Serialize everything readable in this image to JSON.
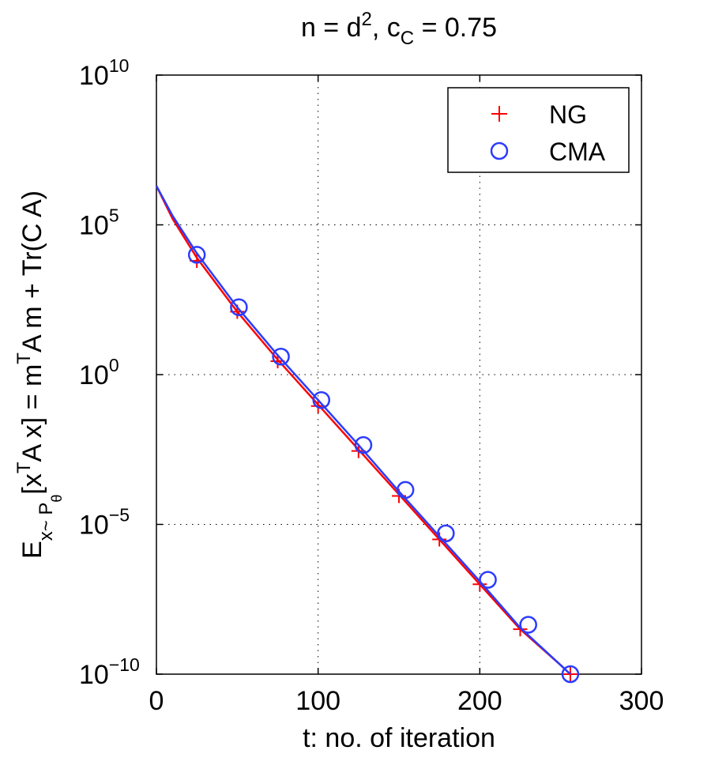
{
  "chart_data": {
    "type": "line",
    "title": {
      "base": "n = d",
      "sup": "2",
      "mid": ", c",
      "sub": "C",
      "tail": " = 0.75"
    },
    "xlabel": "t: no. of iteration",
    "ylabel": {
      "p1": "E",
      "p1_sub": "x~ P",
      "p1_subsub": "θ",
      "p2": "[x",
      "p2_sup": "T",
      "p3": "A x] = m",
      "p3_sup": "T",
      "p4": "A m + Tr(C A)"
    },
    "xlim": [
      0,
      300
    ],
    "ylim_log10": [
      -10,
      10
    ],
    "y_scale": "log",
    "grid": true,
    "x_ticks": [
      {
        "value": 0,
        "label": "0"
      },
      {
        "value": 100,
        "label": "100"
      },
      {
        "value": 200,
        "label": "200"
      },
      {
        "value": 300,
        "label": "300"
      }
    ],
    "y_ticks": [
      {
        "exp": 10,
        "base": "10",
        "sup": "10"
      },
      {
        "exp": 5,
        "base": "10",
        "sup": "5"
      },
      {
        "exp": 0,
        "base": "10",
        "sup": "0"
      },
      {
        "exp": -5,
        "base": "10",
        "sup": "−5"
      },
      {
        "exp": -10,
        "base": "10",
        "sup": "−10"
      }
    ],
    "legend": {
      "position": "top-right",
      "entries": [
        "NG",
        "CMA"
      ]
    },
    "series": [
      {
        "name": "NG",
        "color": "#ff0000",
        "marker": "plus",
        "line_x": [
          0,
          10,
          25,
          50,
          75,
          100,
          125,
          150,
          175,
          200,
          225,
          250,
          256
        ],
        "line_y_log10": [
          6.3,
          5.2,
          3.9,
          2.1,
          0.5,
          -1.0,
          -2.5,
          -4.0,
          -5.5,
          -7.0,
          -8.5,
          -9.7,
          -10.0
        ],
        "marker_x": [
          25,
          50,
          75,
          100,
          125,
          150,
          175,
          200,
          225,
          256
        ],
        "marker_y_log10": [
          3.8,
          2.1,
          0.45,
          -1.05,
          -2.55,
          -4.05,
          -5.5,
          -7.0,
          -8.5,
          -10.0
        ]
      },
      {
        "name": "CMA",
        "color": "#2b3cff",
        "marker": "circle",
        "line_x": [
          0,
          10,
          25,
          50,
          75,
          100,
          125,
          150,
          175,
          200,
          225,
          250,
          256
        ],
        "line_y_log10": [
          6.3,
          5.3,
          4.05,
          2.25,
          0.65,
          -0.85,
          -2.35,
          -3.9,
          -5.4,
          -6.9,
          -8.45,
          -9.7,
          -10.0
        ],
        "marker_x": [
          25,
          51,
          77,
          102,
          128,
          154,
          179,
          205,
          230,
          256
        ],
        "marker_y_log10": [
          4.0,
          2.25,
          0.6,
          -0.85,
          -2.35,
          -3.85,
          -5.3,
          -6.85,
          -8.35,
          -10.0
        ]
      }
    ]
  }
}
